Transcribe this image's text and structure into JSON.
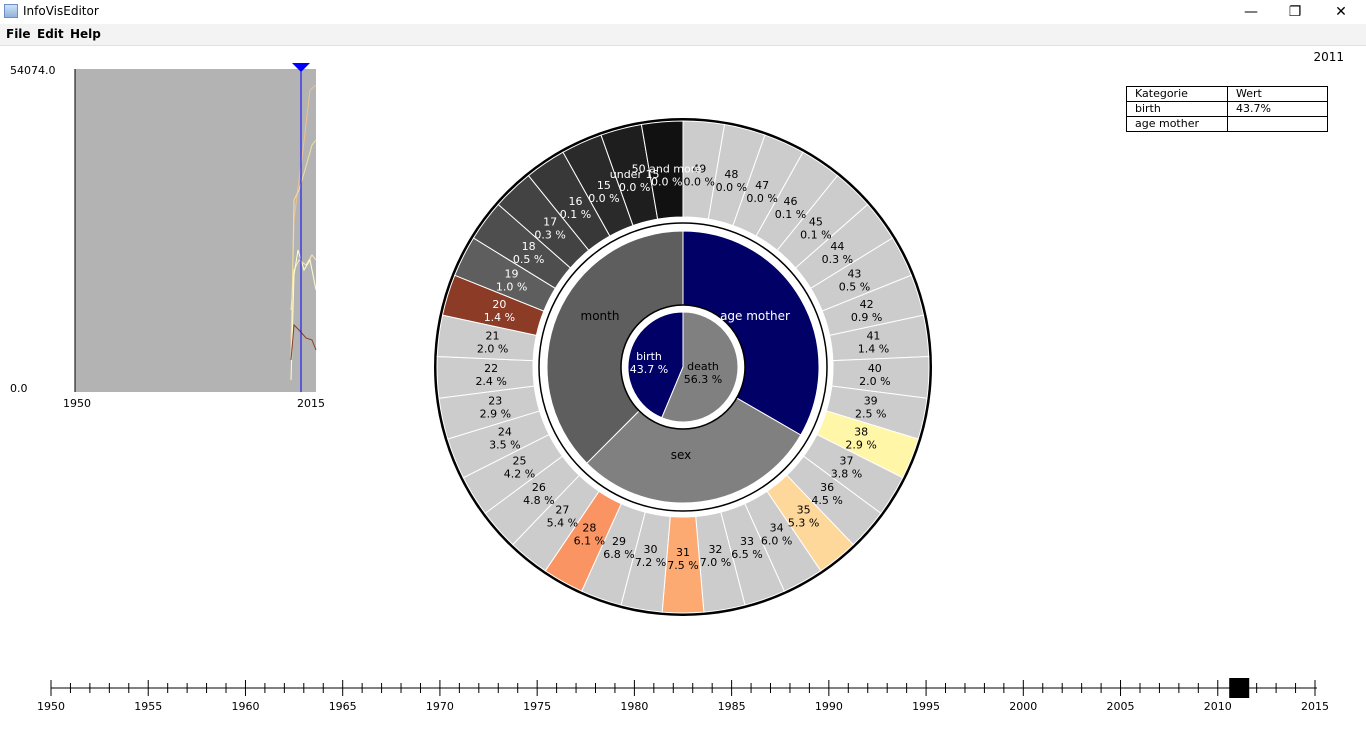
{
  "window": {
    "title": "InfoVisEditor",
    "minimize_glyph": "—",
    "restore_glyph": "❐",
    "close_glyph": "✕"
  },
  "menu": {
    "file": "File",
    "edit": "Edit",
    "help": "Help"
  },
  "current_year_label": "2011",
  "mini_chart": {
    "y_max_label": "54074.0",
    "y_min_label": "0.0",
    "x_start_label": "1950",
    "x_end_label": "2015"
  },
  "info_table": {
    "header": [
      "Kategorie",
      "Wert"
    ],
    "rows": [
      [
        "birth",
        "43.7%"
      ],
      [
        "age mother",
        ""
      ]
    ]
  },
  "sunburst": {
    "inner": [
      {
        "label": "birth",
        "pct": "43.7 %",
        "color": "#000066"
      },
      {
        "label": "death",
        "pct": "56.3 %",
        "color": "#808080"
      }
    ],
    "middle": [
      {
        "label": "age mother",
        "color": "#000066"
      },
      {
        "label": "sex",
        "color": "#808080"
      },
      {
        "label": "month",
        "color": "#5e5e5e"
      }
    ],
    "outer": [
      {
        "label": "49",
        "pct": "0.0 %"
      },
      {
        "label": "48",
        "pct": "0.0 %"
      },
      {
        "label": "47",
        "pct": "0.0 %"
      },
      {
        "label": "46",
        "pct": "0.1 %"
      },
      {
        "label": "45",
        "pct": "0.1 %"
      },
      {
        "label": "44",
        "pct": "0.3 %"
      },
      {
        "label": "43",
        "pct": "0.5 %"
      },
      {
        "label": "42",
        "pct": "0.9 %"
      },
      {
        "label": "41",
        "pct": "1.4 %"
      },
      {
        "label": "40",
        "pct": "2.0 %"
      },
      {
        "label": "39",
        "pct": "2.5 %"
      },
      {
        "label": "38",
        "pct": "2.9 %",
        "color": "#fff6a8"
      },
      {
        "label": "37",
        "pct": "3.8 %"
      },
      {
        "label": "36",
        "pct": "4.5 %"
      },
      {
        "label": "35",
        "pct": "5.3 %",
        "color": "#fdd89a"
      },
      {
        "label": "34",
        "pct": "6.0 %"
      },
      {
        "label": "33",
        "pct": "6.5 %"
      },
      {
        "label": "32",
        "pct": "7.0 %"
      },
      {
        "label": "31",
        "pct": "7.5 %",
        "color": "#fcaa72"
      },
      {
        "label": "30",
        "pct": "7.2 %"
      },
      {
        "label": "29",
        "pct": "6.8 %"
      },
      {
        "label": "28",
        "pct": "6.1 %",
        "color": "#fb9463"
      },
      {
        "label": "27",
        "pct": "5.4 %"
      },
      {
        "label": "26",
        "pct": "4.8 %"
      },
      {
        "label": "25",
        "pct": "4.2 %"
      },
      {
        "label": "24",
        "pct": "3.5 %"
      },
      {
        "label": "23",
        "pct": "2.9 %"
      },
      {
        "label": "22",
        "pct": "2.4 %"
      },
      {
        "label": "21",
        "pct": "2.0 %"
      },
      {
        "label": "20",
        "pct": "1.4 %",
        "color": "#8b3b26"
      },
      {
        "label": "19",
        "pct": "1.0 %",
        "color": "#5e5e5e"
      },
      {
        "label": "18",
        "pct": "0.5 %",
        "color": "#4e4e4e"
      },
      {
        "label": "17",
        "pct": "0.3 %",
        "color": "#434343"
      },
      {
        "label": "16",
        "pct": "0.1 %",
        "color": "#383838"
      },
      {
        "label": "15",
        "pct": "0.0 %",
        "color": "#2a2a2a"
      },
      {
        "label": "under 15",
        "pct": "0.0 %",
        "color": "#1e1e1e"
      },
      {
        "label": "50 and more",
        "pct": "0.0 %",
        "color": "#111111"
      }
    ]
  },
  "timeline": {
    "start": 1950,
    "end": 2015,
    "labels": [
      "1950",
      "1955",
      "1960",
      "1965",
      "1970",
      "1975",
      "1980",
      "1985",
      "1990",
      "1995",
      "2000",
      "2005",
      "2010",
      "2015"
    ],
    "selected_year": 2011
  }
}
